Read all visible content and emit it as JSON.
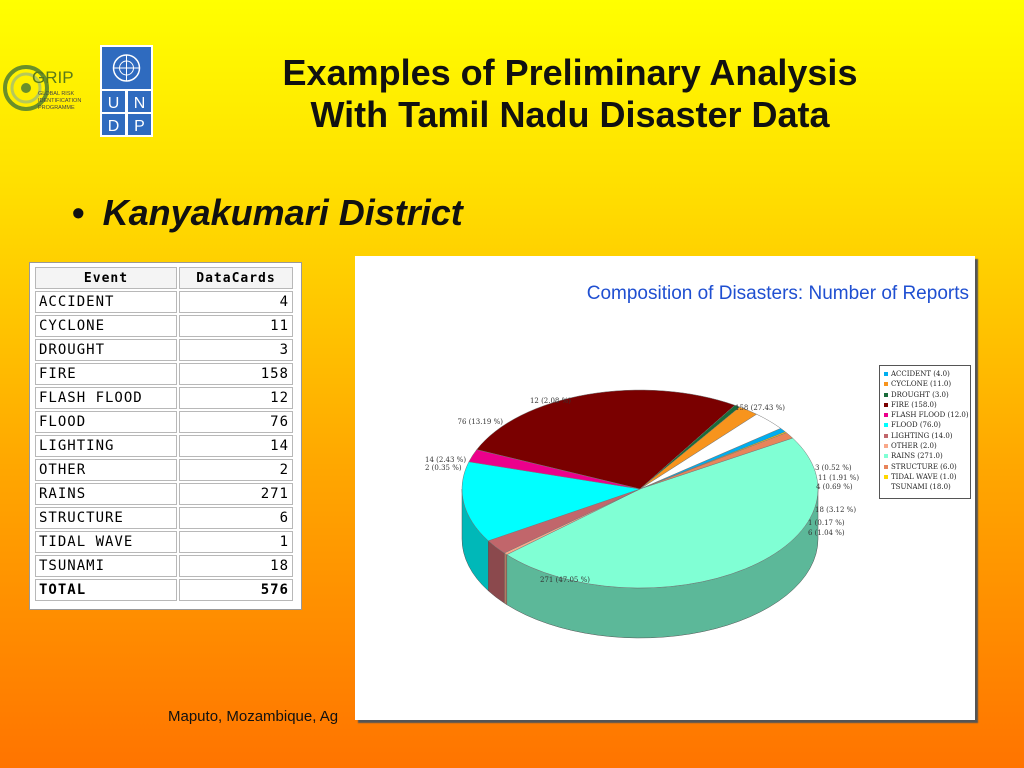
{
  "logos": {
    "grip": {
      "name": "GRIP",
      "line1": "GLOBAL RISK",
      "line2": "IDENTIFICATION",
      "line3": "PROGRAMME"
    },
    "undp": {
      "letters": [
        "U",
        "N",
        "D",
        "P"
      ]
    }
  },
  "title": {
    "line1": "Examples of Preliminary Analysis",
    "line2": "With Tamil Nadu Disaster Data"
  },
  "bullet": {
    "text": "Kanyakumari District"
  },
  "table": {
    "headers": [
      "Event",
      "DataCards"
    ],
    "rows": [
      {
        "event": "ACCIDENT",
        "value": "4"
      },
      {
        "event": "CYCLONE",
        "value": "11"
      },
      {
        "event": "DROUGHT",
        "value": "3"
      },
      {
        "event": "FIRE",
        "value": "158"
      },
      {
        "event": "FLASH FLOOD",
        "value": "12"
      },
      {
        "event": "FLOOD",
        "value": "76"
      },
      {
        "event": "LIGHTING",
        "value": "14"
      },
      {
        "event": "OTHER",
        "value": "2"
      },
      {
        "event": "RAINS",
        "value": "271"
      },
      {
        "event": "STRUCTURE",
        "value": "6"
      },
      {
        "event": "TIDAL WAVE",
        "value": "1"
      },
      {
        "event": "TSUNAMI",
        "value": "18"
      }
    ],
    "total": {
      "event": "TOTAL",
      "value": "576"
    }
  },
  "chart_data": {
    "type": "pie",
    "title": "Composition of Disasters: Number of Reports",
    "legend_position": "right",
    "slices": [
      {
        "name": "ACCIDENT",
        "legend": "ACCIDENT (4.0)",
        "value": 4,
        "label": "4 (0.69 %)",
        "color": "#00aeef"
      },
      {
        "name": "CYCLONE",
        "legend": "CYCLONE (11.0)",
        "value": 11,
        "label": "11 (1.91 %)",
        "color": "#f7941d"
      },
      {
        "name": "DROUGHT",
        "legend": "DROUGHT (3.0)",
        "value": 3,
        "label": "3 (0.52 %)",
        "color": "#1a6b3a"
      },
      {
        "name": "FIRE",
        "legend": "FIRE (158.0)",
        "value": 158,
        "label": "158 (27.43 %)",
        "color": "#7a0000"
      },
      {
        "name": "FLASH FLOOD",
        "legend": "FLASH FLOOD (12.0)",
        "value": 12,
        "label": "12 (2.08 %)",
        "color": "#ec008c"
      },
      {
        "name": "FLOOD",
        "legend": "FLOOD (76.0)",
        "value": 76,
        "label": "76 (13.19 %)",
        "color": "#00ffff"
      },
      {
        "name": "LIGHTING",
        "legend": "LIGHTING (14.0)",
        "value": 14,
        "label": "14 (2.43 %)",
        "color": "#c1666b"
      },
      {
        "name": "OTHER",
        "legend": "OTHER (2.0)",
        "value": 2,
        "label": "2 (0.35 %)",
        "color": "#f9a88a"
      },
      {
        "name": "RAINS",
        "legend": "RAINS (271.0)",
        "value": 271,
        "label": "271 (47.05 %)",
        "color": "#80ffd4"
      },
      {
        "name": "STRUCTURE",
        "legend": "STRUCTURE (6.0)",
        "value": 6,
        "label": "6 (1.04 %)",
        "color": "#e8845a"
      },
      {
        "name": "TIDAL WAVE",
        "legend": "TIDAL WAVE (1.0)",
        "value": 1,
        "label": "1 (0.17 %)",
        "color": "#ffd700"
      },
      {
        "name": "TSUNAMI",
        "legend": "TSUNAMI (18.0)",
        "value": 18,
        "label": "18 (3.12 %)",
        "color": "#ffffff"
      }
    ]
  },
  "footer": {
    "text": "Maputo, Mozambique, Ag"
  }
}
